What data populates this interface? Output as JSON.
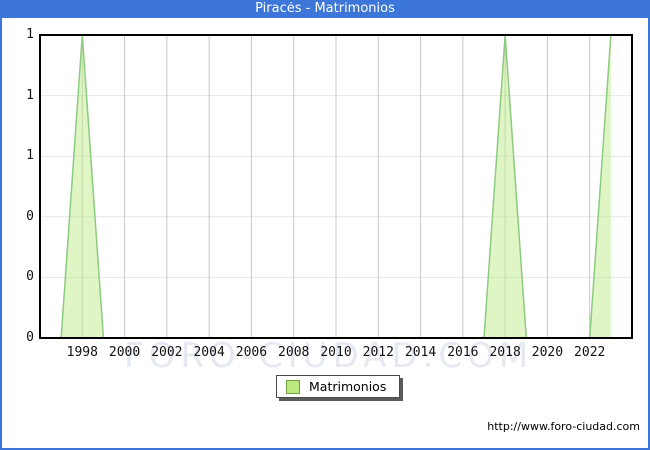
{
  "window": {
    "title": "Piracés - Matrimonios",
    "titlebar_color": "#3b76d8",
    "border_color": "#3b76d8"
  },
  "watermark": {
    "text": "FORO-CIUDAD.COM"
  },
  "legend": {
    "label": "Matrimonios",
    "swatch_color": "#b9e97e"
  },
  "footer": {
    "url": "http://www.foro-ciudad.com"
  },
  "chart_data": {
    "type": "area",
    "title": "Piracés - Matrimonios",
    "x": [
      1996,
      1997,
      1998,
      1999,
      2000,
      2001,
      2002,
      2003,
      2004,
      2005,
      2006,
      2007,
      2008,
      2009,
      2010,
      2011,
      2012,
      2013,
      2014,
      2015,
      2016,
      2017,
      2018,
      2019,
      2020,
      2021,
      2022,
      2023
    ],
    "series": [
      {
        "name": "Matrimonios",
        "values": [
          0,
          0,
          1,
          0,
          0,
          0,
          0,
          0,
          0,
          0,
          0,
          0,
          0,
          0,
          0,
          0,
          0,
          0,
          0,
          0,
          0,
          0,
          1,
          0,
          0,
          0,
          0,
          1
        ]
      }
    ],
    "x_axis": {
      "min": 1996,
      "max": 2024,
      "ticks": [
        1998,
        2000,
        2002,
        2004,
        2006,
        2008,
        2010,
        2012,
        2014,
        2016,
        2018,
        2020,
        2022
      ]
    },
    "y_axis": {
      "min": 0,
      "max": 1,
      "tick_values": [
        0,
        0.2,
        0.4,
        0.6,
        0.8,
        1
      ],
      "tick_labels": [
        "0",
        "0",
        "0",
        "1",
        "1",
        "1"
      ]
    },
    "grid": true,
    "legend_position": "bottom-center",
    "colors": {
      "area_fill": "rgba(184,232,125,0.45)",
      "line": "#8ccb80",
      "v_gridline": "#c9c9c9",
      "h_gridline": "#e6e6e6",
      "plot_border": "#000000"
    }
  }
}
